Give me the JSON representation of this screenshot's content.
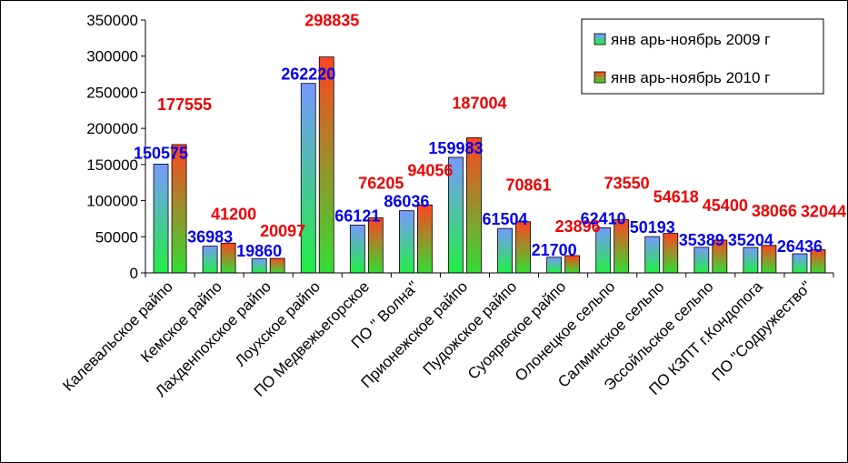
{
  "chart_data": {
    "type": "bar",
    "title": "",
    "xlabel": "",
    "ylabel": "",
    "ylim": [
      0,
      350000
    ],
    "yticks": [
      0,
      50000,
      100000,
      150000,
      200000,
      250000,
      300000,
      350000
    ],
    "tick_labels": [
      "0",
      "50000",
      "100000",
      "150000",
      "200000",
      "250000",
      "300000",
      "350000"
    ],
    "grid": false,
    "legend": "top-right",
    "categories": [
      "Калевальское райпо",
      "Кемское райпо",
      "Лахденпохское райпо",
      "Лоухское райпо",
      "ПО Медвежьегорское",
      "ПО \" Волна\"",
      "Прионежское райпо",
      "Пудожское райпо",
      "Суоярвское райпо",
      "Олонецкое сельпо",
      "Салминское сельпо",
      "Эссойльское сельпо",
      "ПО КЗПТ г.Кондопога",
      "ПО \"Содружество\""
    ],
    "series": [
      {
        "name": "янв арь-ноябрь 2009 г",
        "values": [
          150575,
          36983,
          19860,
          262220,
          66121,
          86036,
          159983,
          61504,
          21700,
          62410,
          50193,
          35389,
          35204,
          26436
        ],
        "labels": [
          "150575",
          "36983",
          "19860",
          "262220",
          "66121",
          "86036",
          "159983",
          "61504",
          "21700",
          "62410",
          "50193",
          "35389",
          "35204",
          "26436"
        ],
        "label_color": "#0000ee",
        "colors": [
          "#6699ff",
          "#33ee33"
        ]
      },
      {
        "name": "янв арь-ноябрь 2010 г",
        "values": [
          177555,
          41200,
          20097,
          298835,
          76205,
          94056,
          187004,
          70861,
          23896,
          73550,
          54618,
          45400,
          38066,
          32044
        ],
        "labels": [
          "177555",
          "41200",
          "20097",
          "298835",
          "76205",
          "94056",
          "187004",
          "70861",
          "23896",
          "73550",
          "54618",
          "45400",
          "38066",
          "32044"
        ],
        "label_color": "#ee0000",
        "colors": [
          "#ff3333",
          "#33dd33"
        ]
      }
    ]
  }
}
